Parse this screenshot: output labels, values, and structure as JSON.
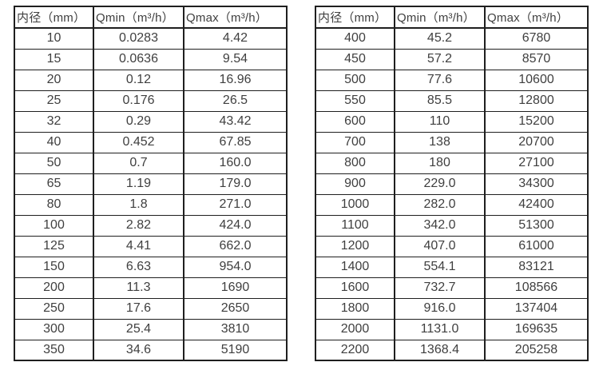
{
  "page": {
    "background": "#ffffff",
    "text_color": "#3f3f3f",
    "border_color": "#1f1f1f"
  },
  "tables": [
    {
      "name": "flow-spec-table-small-diameters",
      "headers": [
        "内径（mm）",
        "Qmin（m³/h）",
        "Qmax（m³/h）"
      ],
      "rows": [
        [
          "10",
          "0.0283",
          "4.42"
        ],
        [
          "15",
          "0.0636",
          "9.54"
        ],
        [
          "20",
          "0.12",
          "16.96"
        ],
        [
          "25",
          "0.176",
          "26.5"
        ],
        [
          "32",
          "0.29",
          "43.42"
        ],
        [
          "40",
          "0.452",
          "67.85"
        ],
        [
          "50",
          "0.7",
          "160.0"
        ],
        [
          "65",
          "1.19",
          "179.0"
        ],
        [
          "80",
          "1.8",
          "271.0"
        ],
        [
          "100",
          "2.82",
          "424.0"
        ],
        [
          "125",
          "4.41",
          "662.0"
        ],
        [
          "150",
          "6.63",
          "954.0"
        ],
        [
          "200",
          "11.3",
          "1690"
        ],
        [
          "250",
          "17.6",
          "2650"
        ],
        [
          "300",
          "25.4",
          "3810"
        ],
        [
          "350",
          "34.6",
          "5190"
        ]
      ]
    },
    {
      "name": "flow-spec-table-large-diameters",
      "headers": [
        "内径（mm）",
        "Qmin（m³/h）",
        "Qmax（m³/h）"
      ],
      "rows": [
        [
          "400",
          "45.2",
          "6780"
        ],
        [
          "450",
          "57.2",
          "8570"
        ],
        [
          "500",
          "77.6",
          "10600"
        ],
        [
          "550",
          "85.5",
          "12800"
        ],
        [
          "600",
          "110",
          "15200"
        ],
        [
          "700",
          "138",
          "20700"
        ],
        [
          "800",
          "180",
          "27100"
        ],
        [
          "900",
          "229.0",
          "34300"
        ],
        [
          "1000",
          "282.0",
          "42400"
        ],
        [
          "1100",
          "342.0",
          "51300"
        ],
        [
          "1200",
          "407.0",
          "61000"
        ],
        [
          "1400",
          "554.1",
          "83121"
        ],
        [
          "1600",
          "732.7",
          "108566"
        ],
        [
          "1800",
          "916.0",
          "137404"
        ],
        [
          "2000",
          "1131.0",
          "169635"
        ],
        [
          "2200",
          "1368.4",
          "205258"
        ]
      ]
    }
  ]
}
